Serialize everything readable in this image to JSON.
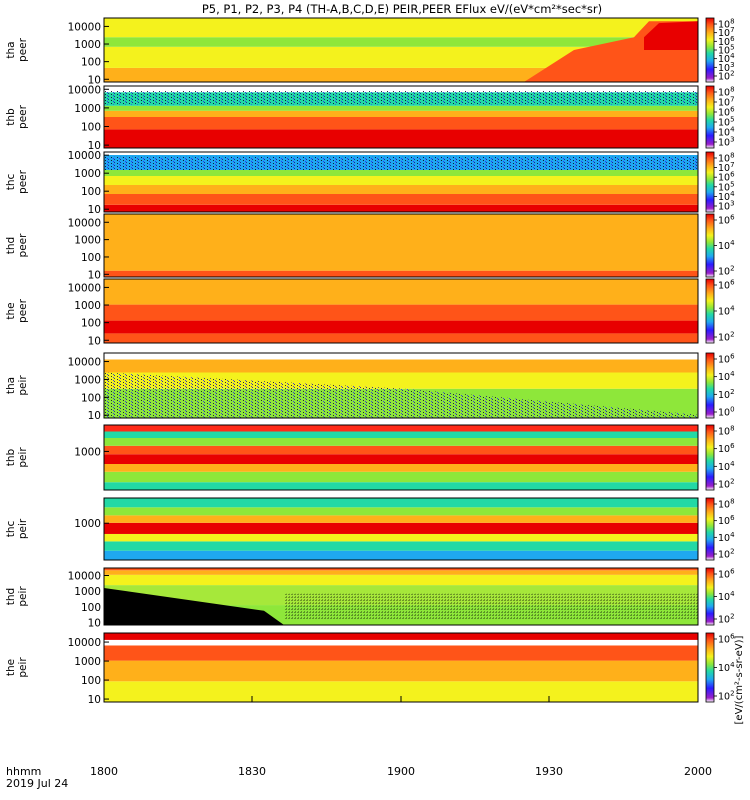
{
  "chart_data": {
    "type": "heatmap",
    "title": "P5, P1, P2, P3, P4 (TH-A,B,C,D,E) PEIR,PEER EFlux eV/(eV*cm²*sec*sr)",
    "x_axis": {
      "ticks": [
        "1800",
        "1830",
        "1900",
        "1930",
        "2000"
      ],
      "label_line1": "hhmm",
      "label_line2": "2019 Jul 24"
    },
    "y_scale": "log",
    "colorbar": {
      "scale": "log",
      "label": "[eV/(cm²-s-sr-eV)]",
      "colors": [
        "#ffffff",
        "#9b20c8",
        "#2b1bff",
        "#1fa8f0",
        "#22d9a5",
        "#8ee73a",
        "#f4f21d",
        "#ffb01a",
        "#ff5418",
        "#e80000"
      ]
    },
    "panels": [
      {
        "id": "tha_peer",
        "label1": "tha",
        "label2": "peer",
        "ylim": [
          7,
          30000
        ],
        "yticks": [
          "10",
          "100",
          "1000",
          "10000"
        ],
        "cb_ticks": [
          "10^8",
          "10^7",
          "10^6",
          "10^5",
          "10^4",
          "10^3",
          "10^2"
        ]
      },
      {
        "id": "thb_peer",
        "label1": "thb",
        "label2": "peer",
        "ylim": [
          7,
          15000
        ],
        "yticks": [
          "10",
          "100",
          "1000",
          "10000"
        ],
        "cb_ticks": [
          "10^8",
          "10^7",
          "10^6",
          "10^5",
          "10^4",
          "10^3"
        ]
      },
      {
        "id": "thc_peer",
        "label1": "thc",
        "label2": "peer",
        "ylim": [
          7,
          15000
        ],
        "yticks": [
          "10",
          "100",
          "1000",
          "10000"
        ],
        "cb_ticks": [
          "10^8",
          "10^7",
          "10^6",
          "10^5",
          "10^4",
          "10^3"
        ]
      },
      {
        "id": "thd_peer",
        "label1": "thd",
        "label2": "peer",
        "ylim": [
          7,
          30000
        ],
        "yticks": [
          "10",
          "100",
          "1000",
          "10000"
        ],
        "cb_ticks": [
          "10^6",
          "10^4",
          "10^2"
        ]
      },
      {
        "id": "the_peer",
        "label1": "the",
        "label2": "peer",
        "ylim": [
          7,
          30000
        ],
        "yticks": [
          "10",
          "100",
          "1000",
          "10000"
        ],
        "cb_ticks": [
          "10^6",
          "10^4",
          "10^2"
        ]
      },
      {
        "id": "tha_peir",
        "label1": "tha",
        "label2": "peir",
        "ylim": [
          7,
          30000
        ],
        "yticks": [
          "10",
          "100",
          "1000",
          "10000"
        ],
        "cb_ticks": [
          "10^6",
          "10^4",
          "10^2",
          "10^0"
        ]
      },
      {
        "id": "thb_peir",
        "label1": "thb",
        "label2": "peir",
        "ylim": [
          7,
          30000
        ],
        "yticks": [
          "1000"
        ],
        "cb_ticks": [
          "10^8",
          "10^6",
          "10^4",
          "10^2"
        ]
      },
      {
        "id": "thc_peir",
        "label1": "thc",
        "label2": "peir",
        "ylim": [
          7,
          30000
        ],
        "yticks": [
          "1000"
        ],
        "cb_ticks": [
          "10^8",
          "10^6",
          "10^4",
          "10^2"
        ]
      },
      {
        "id": "thd_peir",
        "label1": "thd",
        "label2": "peir",
        "ylim": [
          7,
          30000
        ],
        "yticks": [
          "10",
          "100",
          "1000",
          "10000"
        ],
        "cb_ticks": [
          "10^6",
          "10^4",
          "10^2"
        ]
      },
      {
        "id": "the_peir",
        "label1": "the",
        "label2": "peir",
        "ylim": [
          7,
          30000
        ],
        "yticks": [
          "10",
          "100",
          "1000",
          "10000"
        ],
        "cb_ticks": [
          "10^6",
          "10^4",
          "10^2"
        ]
      }
    ]
  }
}
